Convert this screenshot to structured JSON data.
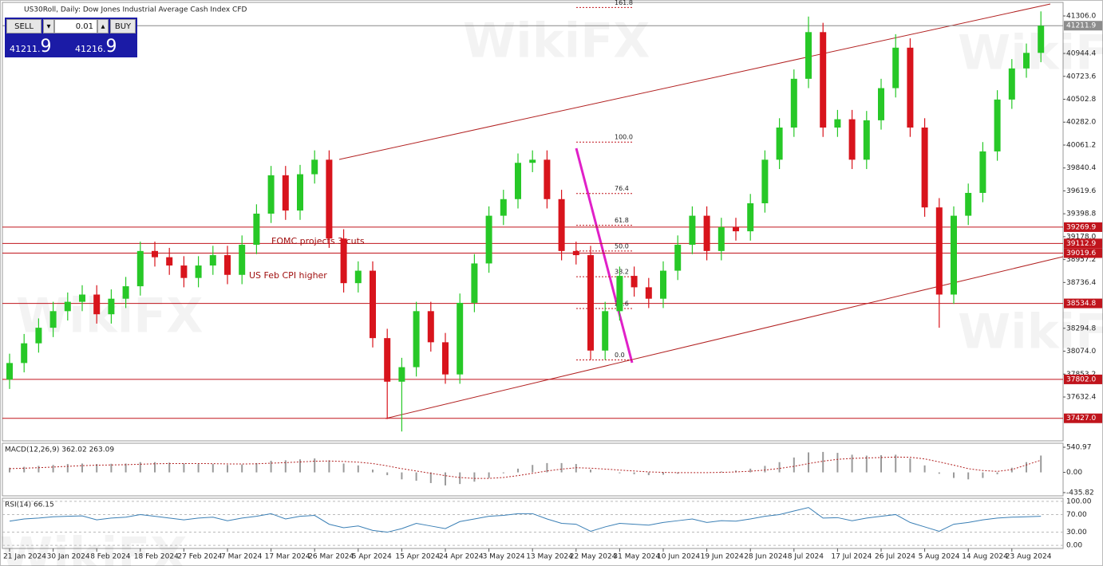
{
  "header": {
    "title": "US30Roll, Daily: Dow Jones Industrial Average Cash Index CFD"
  },
  "trade_panel": {
    "sell": "SELL",
    "buy": "BUY",
    "lot": "0.01",
    "sell_price": [
      "41211.",
      "9"
    ],
    "buy_price": [
      "41216.",
      "9"
    ]
  },
  "watermark": "WikiFX",
  "chart_data": [
    {
      "type": "candlestick",
      "categories": [
        "21 Jan 2024",
        null,
        null,
        "30 Jan 2024",
        null,
        null,
        "8 Feb 2024",
        null,
        null,
        "18 Feb 2024",
        null,
        null,
        "27 Feb 2024",
        null,
        null,
        "7 Mar 2024",
        null,
        null,
        "17 Mar 2024",
        null,
        null,
        "26 Mar 2024",
        null,
        null,
        "5 Apr 2024",
        null,
        null,
        "15 Apr 2024",
        null,
        null,
        "24 Apr 2024",
        null,
        null,
        "3 May 2024",
        null,
        null,
        "13 May 2024",
        null,
        null,
        "22 May 2024",
        null,
        null,
        "31 May 2024",
        null,
        null,
        "10 Jun 2024",
        null,
        null,
        "19 Jun 2024",
        null,
        null,
        "28 Jun 2024",
        null,
        null,
        "8 Jul 2024",
        null,
        null,
        "17 Jul 2024",
        null,
        null,
        "26 Jul 2024",
        null,
        null,
        "5 Aug 2024",
        null,
        null,
        "14 Aug 2024",
        null,
        null,
        "23 Aug 2024",
        null,
        null
      ],
      "open": [
        37800,
        37960,
        38150,
        38300,
        38460,
        38550,
        38620,
        38430,
        38580,
        38700,
        39040,
        38980,
        38900,
        38780,
        38900,
        39000,
        38810,
        39100,
        39400,
        39770,
        39430,
        39780,
        39920,
        39160,
        38730,
        38850,
        38200,
        37780,
        37920,
        38460,
        38160,
        37850,
        38540,
        38920,
        39380,
        39540,
        39890,
        39920,
        39540,
        39040,
        39000,
        38080,
        38460,
        38800,
        38690,
        38580,
        38850,
        39100,
        39380,
        39040,
        39270,
        39230,
        39500,
        39920,
        40230,
        40700,
        41150,
        40230,
        40310,
        39920,
        40300,
        40610,
        41000,
        40230,
        39460,
        38620,
        39380,
        39600,
        40000,
        40500,
        40800,
        40950
      ],
      "high": [
        38050,
        38240,
        38390,
        38550,
        38640,
        38710,
        38710,
        38670,
        38790,
        39130,
        39130,
        39070,
        38990,
        38990,
        39090,
        39090,
        39190,
        39490,
        39860,
        39860,
        39870,
        40010,
        40010,
        39250,
        38940,
        38940,
        38290,
        38010,
        38550,
        38550,
        38250,
        38630,
        39010,
        39470,
        39630,
        39980,
        40010,
        40010,
        39630,
        39130,
        39090,
        38550,
        38890,
        38890,
        38780,
        38940,
        39190,
        39470,
        39470,
        39360,
        39360,
        39590,
        40010,
        40320,
        40790,
        41300,
        41240,
        40400,
        40400,
        40390,
        40700,
        41130,
        41090,
        40320,
        39550,
        39470,
        39690,
        40090,
        40590,
        40890,
        41040,
        41350
      ],
      "low": [
        37710,
        37870,
        38060,
        38210,
        38370,
        38460,
        38340,
        38340,
        38490,
        38610,
        38890,
        38810,
        38690,
        38690,
        38810,
        38720,
        38720,
        39010,
        39310,
        39340,
        39340,
        39690,
        39070,
        38640,
        38640,
        38110,
        37420,
        37300,
        37830,
        38070,
        37760,
        37760,
        38450,
        38830,
        39290,
        39450,
        39800,
        39450,
        38950,
        38910,
        37990,
        37990,
        38370,
        38600,
        38490,
        38490,
        38760,
        39010,
        38950,
        38950,
        39140,
        39140,
        39410,
        39830,
        40140,
        40610,
        40140,
        40140,
        39830,
        39830,
        40210,
        40520,
        40140,
        39370,
        38300,
        38530,
        39290,
        39510,
        39910,
        40410,
        40710,
        40860
      ],
      "close": [
        37960,
        38150,
        38300,
        38460,
        38550,
        38620,
        38430,
        38580,
        38700,
        39040,
        38980,
        38900,
        38780,
        38900,
        39000,
        38810,
        39100,
        39400,
        39770,
        39430,
        39780,
        39920,
        39160,
        38730,
        38850,
        38200,
        37780,
        37920,
        38460,
        38160,
        37850,
        38540,
        38920,
        39380,
        39540,
        39890,
        39920,
        39540,
        39040,
        39000,
        38080,
        38460,
        38800,
        38690,
        38580,
        38850,
        39100,
        39380,
        39040,
        39270,
        39230,
        39500,
        39920,
        40230,
        40700,
        41150,
        40230,
        40310,
        39920,
        40300,
        40610,
        41000,
        40230,
        39460,
        38620,
        39380,
        39600,
        40000,
        40500,
        40800,
        40950,
        41211.9
      ],
      "up_color": "#27c827",
      "down_color": "#d8141c",
      "ylim": [
        37209.7,
        41436.6
      ],
      "yticks": [
        {
          "value": 41306,
          "label": "41306.0"
        },
        40944.4,
        40723.6,
        40502.8,
        {
          "value": 40282,
          "label": "40282.0"
        },
        40061.2,
        39840.4,
        39619.6,
        39398.8,
        {
          "value": 39178,
          "label": "39178.0"
        },
        38957.2,
        38736.4,
        38294.8,
        {
          "value": 38074,
          "label": "38074.0"
        },
        37853.2,
        37632.4
      ],
      "levels": [
        39269.9,
        39112.9,
        39019.6,
        38534.8,
        {
          "value": 37802,
          "label": "37802.0"
        },
        {
          "value": 37427,
          "label": "37427.0"
        }
      ],
      "level_color": "#c0141c",
      "current_price": 41211.9,
      "annotations": [
        "FOMC projects 3 cuts",
        "US Feb CPI higher"
      ],
      "fibonacci": {
        "high": 40090,
        "low": 37990,
        "levels": [
          161.8,
          {
            "value": 100,
            "label": "100.0"
          },
          76.4,
          61.8,
          {
            "value": 50,
            "label": "50.0"
          },
          38.2,
          23.6,
          {
            "value": 0,
            "label": "0.0"
          }
        ]
      }
    },
    {
      "type": "bar",
      "title": "MACD(12,26,9) 362.02 263.09",
      "values": [
        100,
        120,
        140,
        160,
        180,
        190,
        180,
        185,
        190,
        220,
        220,
        210,
        190,
        180,
        180,
        160,
        170,
        200,
        250,
        260,
        280,
        300,
        260,
        190,
        150,
        60,
        -60,
        -150,
        -180,
        -230,
        -280,
        -250,
        -200,
        -120,
        -20,
        80,
        160,
        200,
        200,
        180,
        60,
        0,
        -20,
        -40,
        -60,
        -50,
        -30,
        0,
        0,
        20,
        40,
        80,
        140,
        220,
        320,
        430,
        440,
        420,
        380,
        360,
        370,
        380,
        300,
        150,
        -30,
        -120,
        -150,
        -120,
        -40,
        100,
        220,
        362.02
      ],
      "signal": [
        80,
        90,
        100,
        115,
        130,
        145,
        155,
        160,
        165,
        175,
        185,
        190,
        190,
        190,
        188,
        182,
        180,
        185,
        198,
        210,
        225,
        240,
        245,
        235,
        220,
        190,
        140,
        80,
        30,
        -20,
        -70,
        -110,
        -130,
        -130,
        -110,
        -70,
        -20,
        30,
        70,
        100,
        90,
        70,
        50,
        30,
        10,
        0,
        -5,
        -5,
        -5,
        0,
        10,
        25,
        50,
        85,
        130,
        190,
        240,
        280,
        300,
        310,
        320,
        330,
        325,
        290,
        225,
        155,
        80,
        40,
        20,
        60,
        160,
        263.09
      ],
      "color": "#9a9a9a",
      "signal_color": "#b22222",
      "ylim": [
        -505,
        627
      ],
      "yticks": [
        540.97,
        {
          "value": 0,
          "label": "0.00"
        },
        -435.82
      ]
    },
    {
      "type": "line",
      "title": "RSI(14) 66.15",
      "values": [
        55,
        60,
        62,
        65,
        66,
        67,
        58,
        62,
        64,
        70,
        66,
        62,
        58,
        62,
        64,
        56,
        62,
        66,
        72,
        60,
        66,
        68,
        48,
        40,
        44,
        34,
        30,
        38,
        50,
        44,
        38,
        54,
        60,
        66,
        68,
        72,
        72,
        60,
        50,
        48,
        32,
        42,
        50,
        48,
        46,
        52,
        56,
        60,
        52,
        56,
        55,
        60,
        66,
        70,
        78,
        86,
        62,
        63,
        56,
        62,
        66,
        70,
        52,
        42,
        32,
        48,
        52,
        58,
        62,
        64,
        65,
        66.15
      ],
      "color": "#3a7fb5",
      "ylim": [
        -7,
        107
      ],
      "yticks": [
        {
          "value": 100,
          "label": "100.00"
        },
        {
          "value": 70,
          "label": "70.00"
        },
        {
          "value": 30,
          "label": "30.00"
        },
        {
          "value": 0,
          "label": "0.00"
        }
      ]
    }
  ]
}
